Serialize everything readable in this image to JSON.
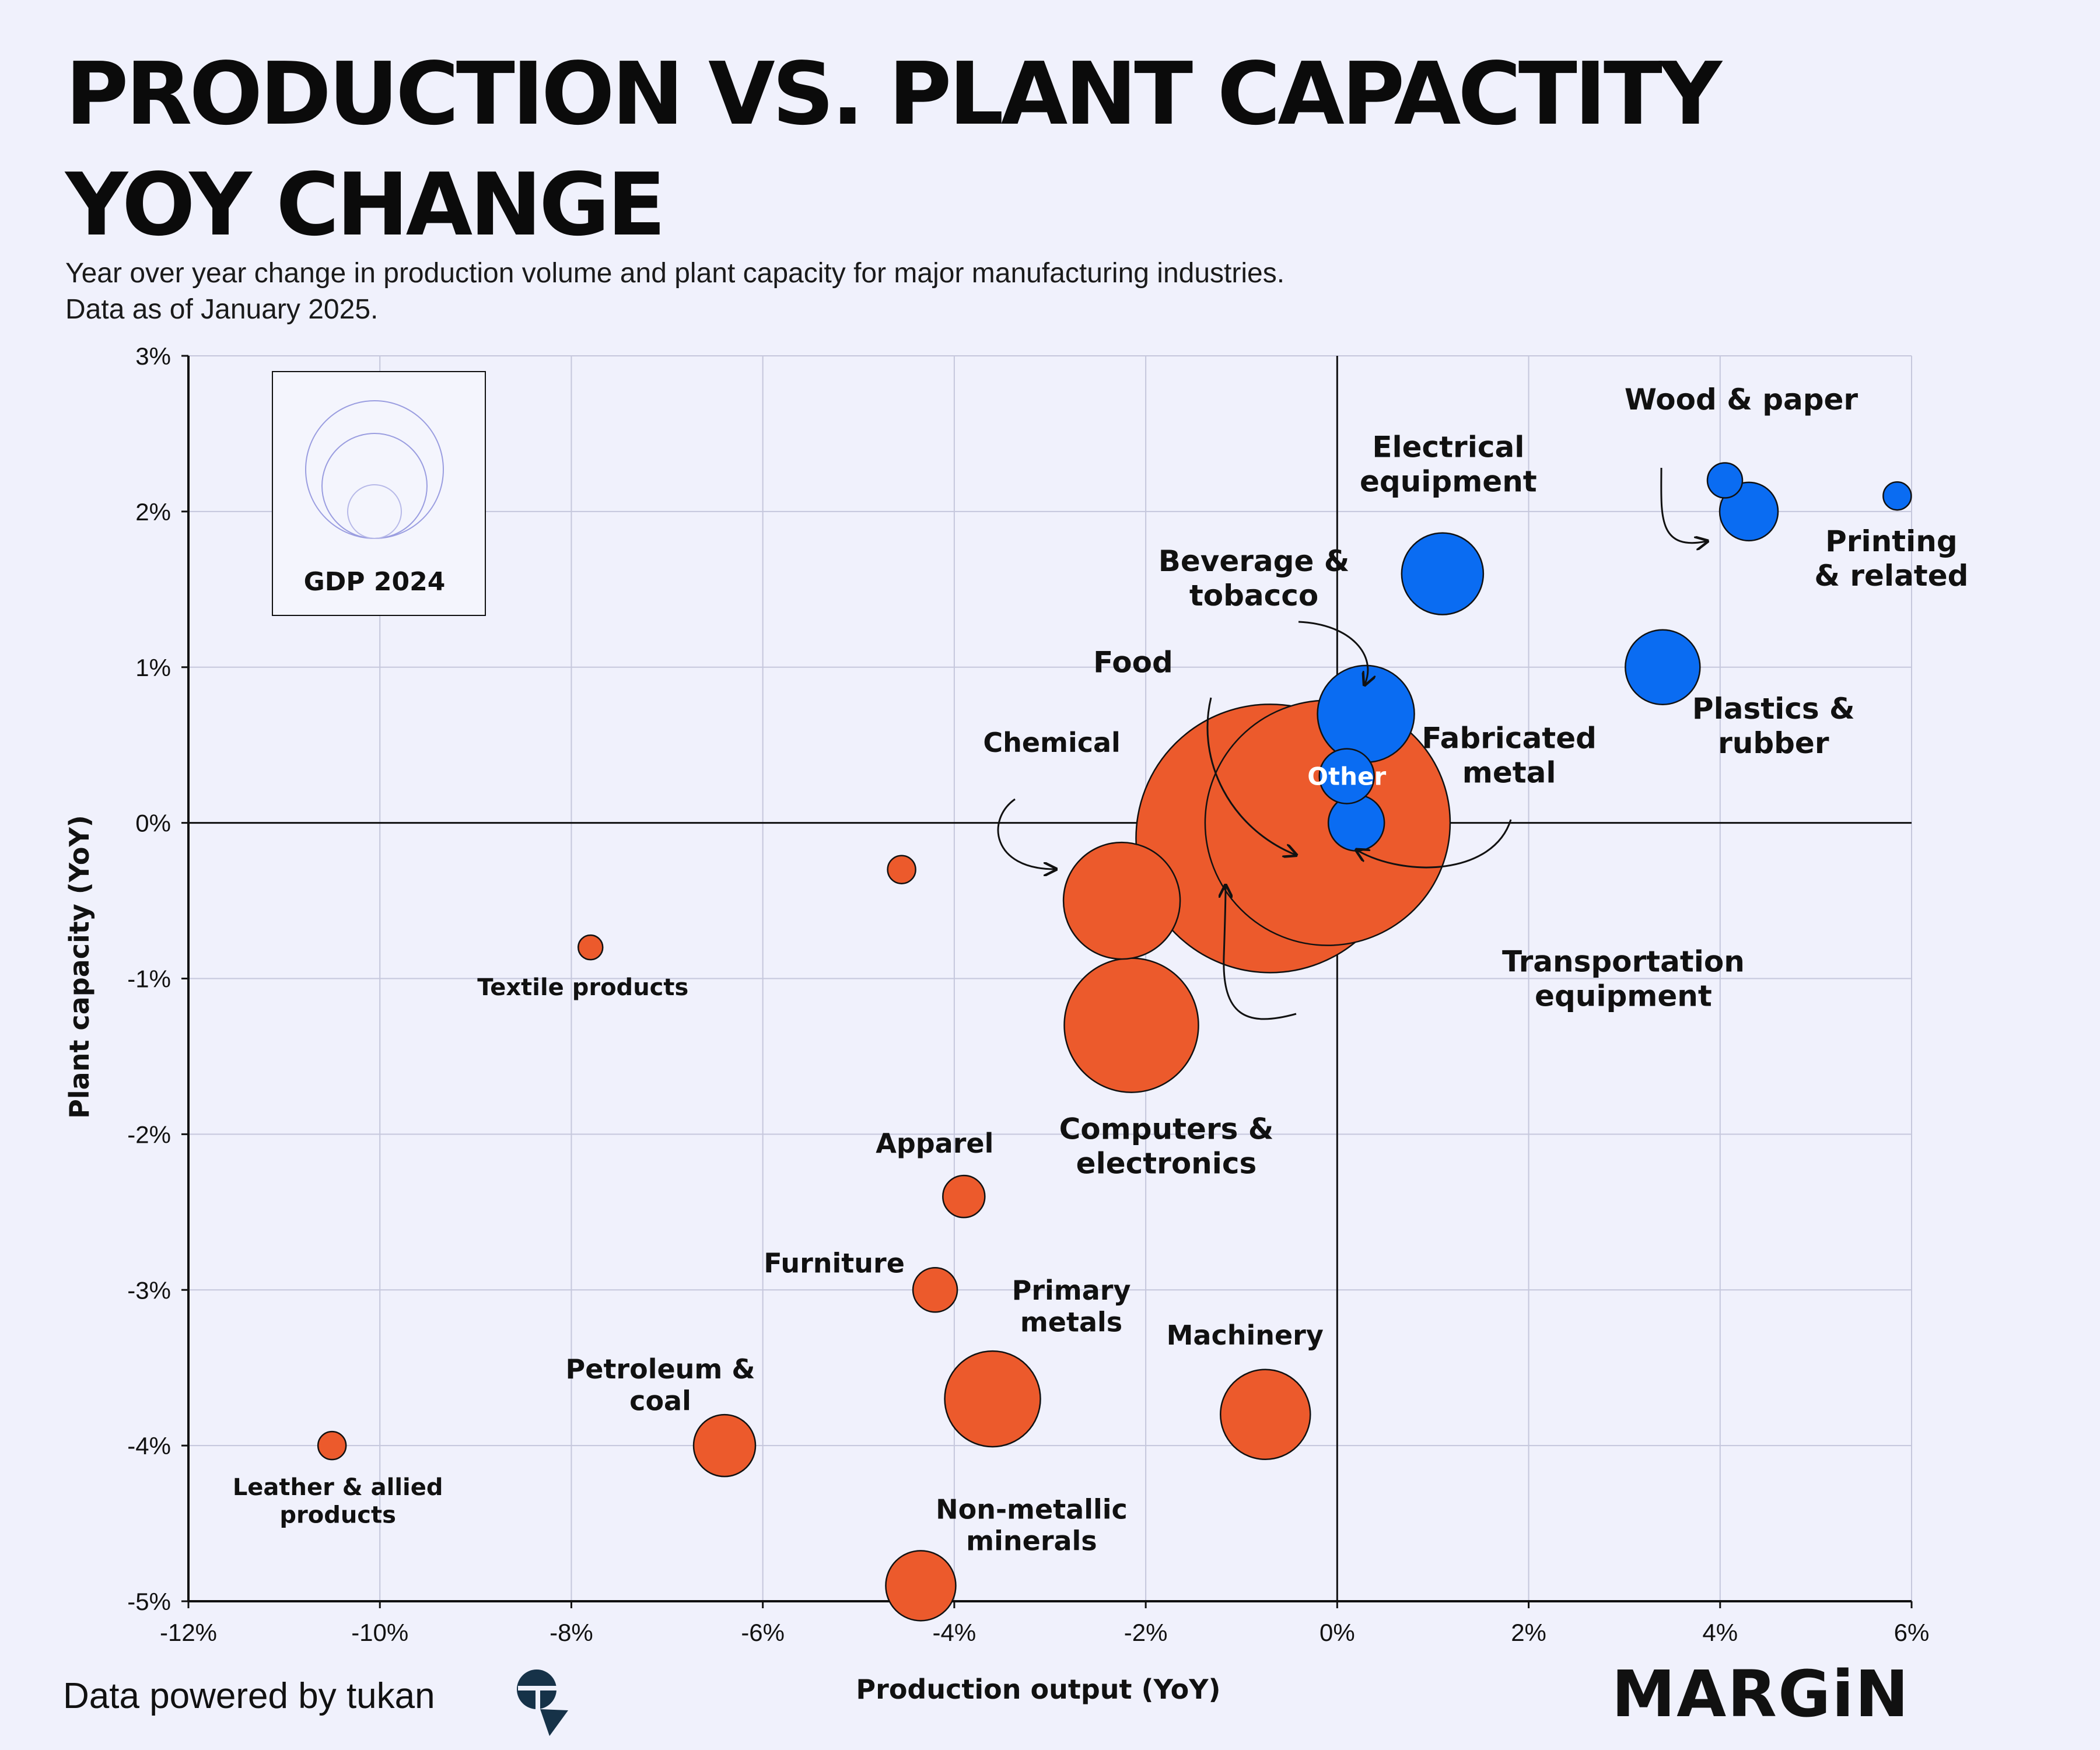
{
  "header": {
    "title_lines": [
      "PRODUCTION VS. PLANT CAPACTITY",
      "YOY CHANGE"
    ],
    "subtitle_lines": [
      "Year over year change in production volume and plant capacity for major manufacturing industries.",
      "Data as of January 2025."
    ]
  },
  "legend": {
    "label": "GDP 2024"
  },
  "footer": {
    "credit": "Data powered by tukan",
    "brand": "MARGiN"
  },
  "colors": {
    "background": "#f0f1fc",
    "negative": "#ec5a2c",
    "positive": "#0a6cf2",
    "grid": "#c5c7dc",
    "axis": "#111111"
  },
  "icons": {
    "tukan": "tukan-logo-icon"
  },
  "chart_data": {
    "type": "scatter",
    "xlabel": "Production output (YoY)",
    "ylabel": "Plant capacity (YoY)",
    "xlim": [
      -12,
      6
    ],
    "ylim": [
      -5,
      3
    ],
    "xticks": [
      -12,
      -10,
      -8,
      -6,
      -4,
      -2,
      0,
      2,
      4,
      6
    ],
    "yticks": [
      -5,
      -4,
      -3,
      -2,
      -1,
      0,
      1,
      2,
      3
    ],
    "tick_suffix": "%",
    "points": [
      {
        "name": "Food",
        "label": "Food",
        "x": -0.7,
        "y": -0.1,
        "size": 2.3,
        "color": "negative"
      },
      {
        "name": "Transportation equipment",
        "label": "Transportation equipment",
        "x": -0.1,
        "y": 0.0,
        "size": 2.1,
        "color": "negative"
      },
      {
        "name": "Computers & electronics",
        "label": "Computers & electronics",
        "x": -2.15,
        "y": -1.3,
        "size": 1.15,
        "color": "negative"
      },
      {
        "name": "Chemical",
        "label": "Chemical",
        "x": -2.25,
        "y": -0.5,
        "size": 1.0,
        "color": "negative"
      },
      {
        "name": "Primary metals",
        "label": "Primary metals",
        "x": -3.6,
        "y": -3.7,
        "size": 0.82,
        "color": "negative"
      },
      {
        "name": "Machinery",
        "label": "Machinery",
        "x": -0.75,
        "y": -3.8,
        "size": 0.77,
        "color": "negative"
      },
      {
        "name": "Petroleum & coal",
        "label": "Petroleum & coal",
        "x": -6.4,
        "y": -4.0,
        "size": 0.53,
        "color": "negative"
      },
      {
        "name": "Non-metallic minerals",
        "label": "Non-metallic minerals",
        "x": -4.35,
        "y": -4.9,
        "size": 0.6,
        "color": "negative"
      },
      {
        "name": "Apparel",
        "label": "Apparel",
        "x": -3.9,
        "y": -2.4,
        "size": 0.36,
        "color": "negative"
      },
      {
        "name": "Furniture",
        "label": "Furniture",
        "x": -4.2,
        "y": -3.0,
        "size": 0.38,
        "color": "negative"
      },
      {
        "name": "Leather & allied products",
        "label": "Leather & allied products",
        "x": -10.5,
        "y": -4.0,
        "size": 0.24,
        "color": "negative"
      },
      {
        "name": "Textile products",
        "label": "Textile products",
        "x": -7.8,
        "y": -0.8,
        "size": 0.21,
        "color": "negative"
      },
      {
        "name": "Unlabeled industry",
        "label": "",
        "x": -4.55,
        "y": -0.3,
        "size": 0.24,
        "color": "negative"
      },
      {
        "name": "Electrical equipment",
        "label": "Electrical equipment",
        "x": 1.1,
        "y": 1.6,
        "size": 0.7,
        "color": "positive"
      },
      {
        "name": "Beverage & tobacco",
        "label": "Beverage & tobacco",
        "x": 0.3,
        "y": 0.7,
        "size": 0.83,
        "color": "positive"
      },
      {
        "name": "Other",
        "label": "Other",
        "x": 0.1,
        "y": 0.3,
        "size": 0.47,
        "color": "positive"
      },
      {
        "name": "Fabricated metal",
        "label": "Fabricated metal",
        "x": 0.2,
        "y": 0.0,
        "size": 0.48,
        "color": "positive"
      },
      {
        "name": "Plastics & rubber",
        "label": "Plastics & rubber",
        "x": 3.4,
        "y": 1.0,
        "size": 0.64,
        "color": "positive"
      },
      {
        "name": "Wood & paper",
        "label": "Wood & paper",
        "x": 4.3,
        "y": 2.0,
        "size": 0.5,
        "color": "positive"
      },
      {
        "name": "Wood & paper (small)",
        "label": "",
        "x": 4.05,
        "y": 2.2,
        "size": 0.3,
        "color": "positive"
      },
      {
        "name": "Printing & related",
        "label": "Printing & related",
        "x": 5.85,
        "y": 2.1,
        "size": 0.24,
        "color": "positive"
      }
    ]
  }
}
